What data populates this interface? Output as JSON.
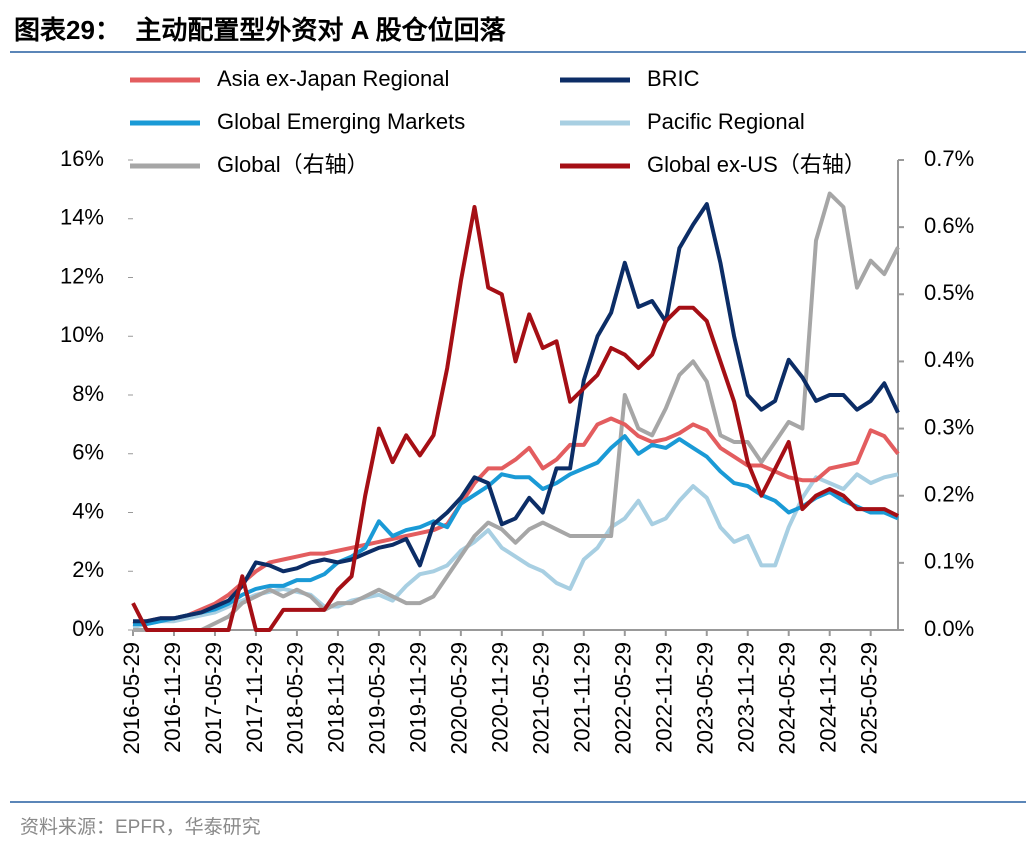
{
  "chart_data": {
    "type": "line",
    "title": "图表29：  主动配置型外资对 A 股仓位回落",
    "source": "资料来源：EPFR，华泰研究",
    "categories": [
      "2016-05-29",
      null,
      null,
      "2016-11-29",
      null,
      null,
      "2017-05-29",
      null,
      null,
      "2017-11-29",
      null,
      null,
      "2018-05-29",
      null,
      null,
      "2018-11-29",
      null,
      null,
      "2019-05-29",
      null,
      null,
      "2019-11-29",
      null,
      null,
      "2020-05-29",
      null,
      null,
      "2020-11-29",
      null,
      null,
      "2021-05-29",
      null,
      null,
      "2021-11-29",
      null,
      null,
      "2022-05-29",
      null,
      null,
      "2022-11-29",
      null,
      null,
      "2023-05-29",
      null,
      null,
      "2023-11-29",
      null,
      null,
      "2024-05-29",
      null,
      null,
      "2024-11-29",
      null,
      null,
      "2025-05-29",
      null,
      null
    ],
    "ylim": [
      0,
      16
    ],
    "yticks": [
      {
        "value": 0,
        "label": "0%"
      },
      {
        "value": 2,
        "label": "2%"
      },
      {
        "value": 4,
        "label": "4%"
      },
      {
        "value": 6,
        "label": "6%"
      },
      {
        "value": 8,
        "label": "8%"
      },
      {
        "value": 10,
        "label": "10%"
      },
      {
        "value": 12,
        "label": "12%"
      },
      {
        "value": 14,
        "label": "14%"
      },
      {
        "value": 16,
        "label": "16%"
      }
    ],
    "y2lim": [
      0,
      0.7
    ],
    "y2ticks": [
      {
        "value": 0,
        "label": "0.0%"
      },
      {
        "value": 0.1,
        "label": "0.1%"
      },
      {
        "value": 0.2,
        "label": "0.2%"
      },
      {
        "value": 0.3,
        "label": "0.3%"
      },
      {
        "value": 0.4,
        "label": "0.4%"
      },
      {
        "value": 0.5,
        "label": "0.5%"
      },
      {
        "value": 0.6,
        "label": "0.6%"
      },
      {
        "value": 0.7,
        "label": "0.7%"
      }
    ],
    "series": [
      {
        "name": "Asia ex-Japan Regional",
        "color": "#e35d5f",
        "values": [
          0.2,
          0.3,
          0.4,
          0.4,
          0.5,
          0.7,
          0.9,
          1.2,
          1.6,
          2.0,
          2.3,
          2.4,
          2.5,
          2.6,
          2.6,
          2.7,
          2.8,
          2.9,
          3.0,
          3.1,
          3.2,
          3.3,
          3.4,
          3.6,
          4.3,
          5.0,
          5.5,
          5.5,
          5.8,
          6.2,
          5.5,
          5.8,
          6.3,
          6.3,
          7.0,
          7.2,
          7.0,
          6.6,
          6.4,
          6.5,
          6.7,
          7.0,
          6.8,
          6.2,
          5.9,
          5.6,
          5.6,
          5.4,
          5.2,
          5.1,
          5.1,
          5.5,
          5.6,
          5.7,
          6.8,
          6.6,
          6.0
        ]
      },
      {
        "name": "BRIC",
        "color": "#0c2d66",
        "values": [
          0.3,
          0.3,
          0.4,
          0.4,
          0.5,
          0.6,
          0.8,
          1.0,
          1.5,
          2.3,
          2.2,
          2.0,
          2.1,
          2.3,
          2.4,
          2.3,
          2.4,
          2.6,
          2.8,
          2.9,
          3.1,
          2.2,
          3.6,
          4.0,
          4.5,
          5.2,
          5.0,
          3.6,
          3.8,
          4.5,
          4.0,
          5.5,
          5.5,
          8.5,
          10.0,
          10.8,
          12.5,
          11.0,
          11.2,
          10.5,
          13.0,
          13.8,
          14.5,
          12.5,
          10.0,
          8.0,
          7.5,
          7.8,
          9.2,
          8.6,
          7.8,
          8.0,
          8.0,
          7.5,
          7.8,
          8.4,
          7.4
        ]
      },
      {
        "name": "Global Emerging Markets",
        "color": "#1a9ad6",
        "values": [
          0.2,
          0.2,
          0.3,
          0.4,
          0.5,
          0.6,
          0.7,
          0.9,
          1.2,
          1.4,
          1.5,
          1.5,
          1.7,
          1.7,
          1.9,
          2.3,
          2.5,
          2.8,
          3.7,
          3.2,
          3.4,
          3.5,
          3.7,
          3.5,
          4.3,
          4.6,
          4.9,
          5.3,
          5.2,
          5.2,
          4.8,
          5.0,
          5.3,
          5.5,
          5.7,
          6.2,
          6.6,
          6.0,
          6.3,
          6.2,
          6.5,
          6.2,
          5.9,
          5.4,
          5.0,
          4.9,
          4.6,
          4.4,
          4.0,
          4.2,
          4.5,
          4.7,
          4.4,
          4.2,
          4.0,
          4.0,
          3.8
        ]
      },
      {
        "name": "Pacific Regional",
        "color": "#a8cfe2",
        "values": [
          0.1,
          0.2,
          0.3,
          0.3,
          0.4,
          0.5,
          0.6,
          0.8,
          1.0,
          1.2,
          1.3,
          1.4,
          1.3,
          1.2,
          0.8,
          0.8,
          1.0,
          1.1,
          1.2,
          1.0,
          1.5,
          1.9,
          2.0,
          2.2,
          2.7,
          3.0,
          3.4,
          2.8,
          2.5,
          2.2,
          2.0,
          1.6,
          1.4,
          2.4,
          2.8,
          3.5,
          3.8,
          4.4,
          3.6,
          3.8,
          4.4,
          4.9,
          4.5,
          3.5,
          3.0,
          3.2,
          2.2,
          2.2,
          3.5,
          4.5,
          5.2,
          5.0,
          4.8,
          5.3,
          5.0,
          5.2,
          5.3
        ]
      },
      {
        "name": "Global（右轴）",
        "color": "#a6a6a6",
        "axis": "y2",
        "values": [
          0.0,
          0.0,
          0.0,
          0.0,
          0.0,
          0.0,
          0.01,
          0.02,
          0.04,
          0.05,
          0.06,
          0.05,
          0.06,
          0.05,
          0.03,
          0.04,
          0.04,
          0.05,
          0.06,
          0.05,
          0.04,
          0.04,
          0.05,
          0.08,
          0.11,
          0.14,
          0.16,
          0.15,
          0.13,
          0.15,
          0.16,
          0.15,
          0.14,
          0.14,
          0.14,
          0.14,
          0.35,
          0.3,
          0.29,
          0.33,
          0.38,
          0.4,
          0.37,
          0.29,
          0.28,
          0.28,
          0.25,
          0.28,
          0.31,
          0.3,
          0.58,
          0.65,
          0.63,
          0.51,
          0.55,
          0.53,
          0.57
        ]
      },
      {
        "name": "Global ex-US（右轴）",
        "color": "#a50f15",
        "axis": "y2",
        "values": [
          0.04,
          0.0,
          0.0,
          0.0,
          0.0,
          0.0,
          0.0,
          0.0,
          0.08,
          0.0,
          0.0,
          0.03,
          0.03,
          0.03,
          0.03,
          0.06,
          0.08,
          0.2,
          0.3,
          0.25,
          0.29,
          0.26,
          0.29,
          0.39,
          0.52,
          0.63,
          0.51,
          0.5,
          0.4,
          0.47,
          0.42,
          0.43,
          0.34,
          0.36,
          0.38,
          0.42,
          0.41,
          0.39,
          0.41,
          0.46,
          0.48,
          0.48,
          0.46,
          0.4,
          0.34,
          0.25,
          0.2,
          0.24,
          0.28,
          0.18,
          0.2,
          0.21,
          0.2,
          0.18,
          0.18,
          0.18,
          0.17
        ]
      }
    ]
  }
}
